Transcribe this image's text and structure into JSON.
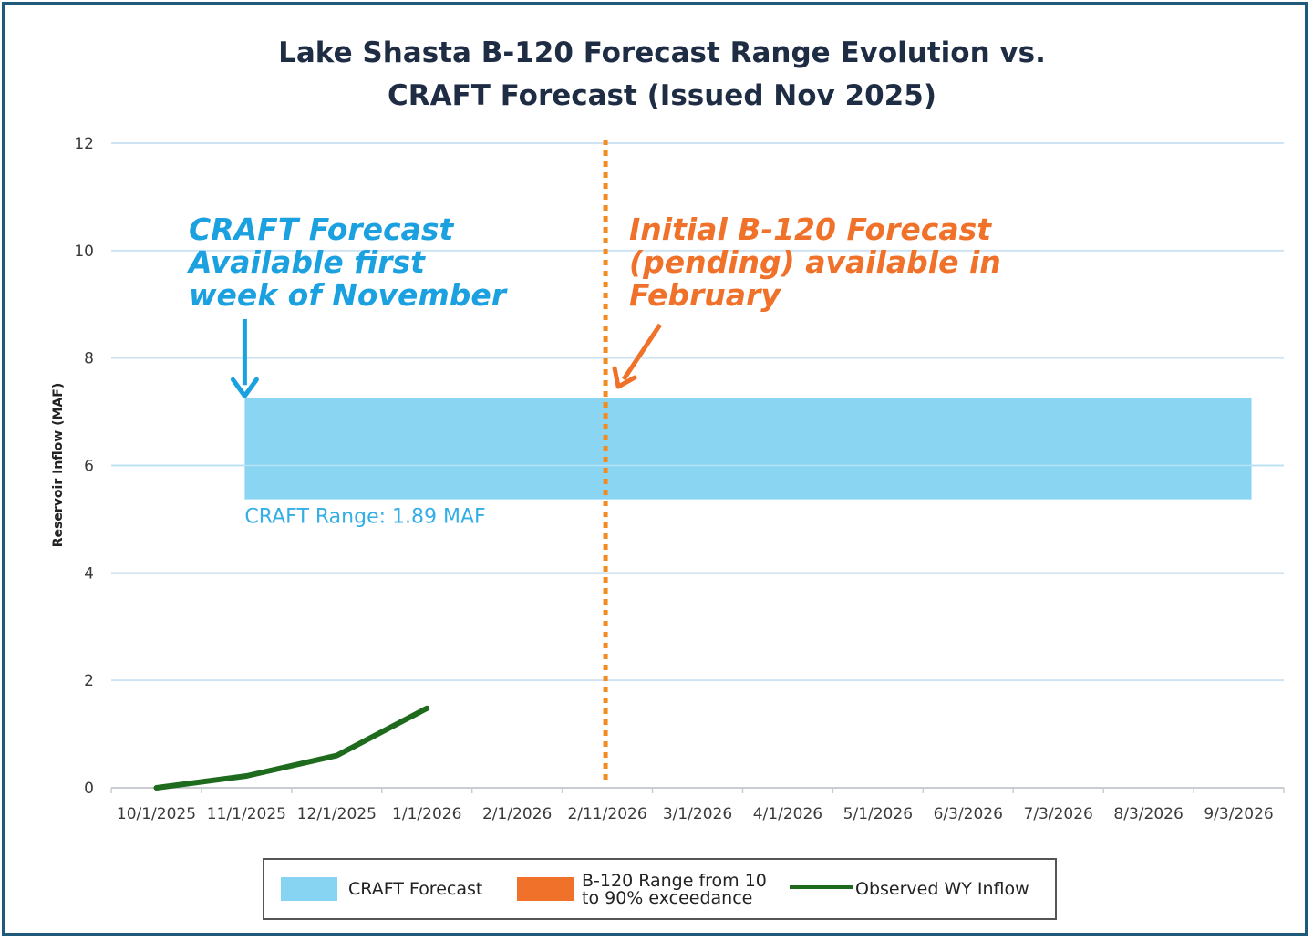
{
  "chart_data": {
    "type": "line",
    "title_lines": [
      "Lake Shasta B-120 Forecast Range Evolution vs.",
      "CRAFT Forecast (Issued Nov 2025)"
    ],
    "xlabel": "",
    "ylabel": "Reservoir Inflow (MAF)",
    "ylim": [
      0,
      12
    ],
    "yticks": [
      0,
      2,
      4,
      6,
      8,
      10,
      12
    ],
    "categories": [
      "10/1/2025",
      "11/1/2025",
      "12/1/2025",
      "1/1/2026",
      "2/1/2026",
      "2/11/2026",
      "3/1/2026",
      "4/1/2026",
      "5/1/2026",
      "6/3/2026",
      "7/3/2026",
      "8/3/2026",
      "9/3/2026"
    ],
    "grid": true,
    "series": [
      {
        "name": "Observed WY Inflow",
        "color": "#1e6b1e",
        "points": [
          {
            "x": "10/1/2025",
            "y": 0.0
          },
          {
            "x": "11/1/2025",
            "y": 0.22
          },
          {
            "x": "12/1/2025",
            "y": 0.6
          },
          {
            "x": "1/1/2026",
            "y": 1.48
          }
        ]
      }
    ],
    "bands": [
      {
        "name": "CRAFT Forecast",
        "color": "#87d4f2",
        "x_start": "11/1/2025",
        "x_end": "9/3/2026",
        "y_low": 5.37,
        "y_high": 7.26,
        "label": "CRAFT Range: 1.89 MAF"
      }
    ],
    "vlines": [
      {
        "x": "2/11/2026",
        "color": "#f58a1f",
        "style": "dotted"
      }
    ],
    "annotations": [
      {
        "lines": [
          "CRAFT Forecast",
          "Available first",
          "week of November"
        ],
        "color": "#1ba0e0",
        "arrow_to": {
          "x": "11/1/2025",
          "y": 7.26
        }
      },
      {
        "lines": [
          "Initial B-120 Forecast",
          "(pending) available in",
          "February"
        ],
        "color": "#f0722a",
        "arrow_to": {
          "x": "2/11/2026",
          "y": 7.4
        }
      }
    ],
    "legend": [
      {
        "label_lines": [
          "CRAFT Forecast"
        ],
        "kind": "box",
        "color": "#87d4f2"
      },
      {
        "label_lines": [
          "B-120 Range from 10",
          "to 90% exceedance"
        ],
        "kind": "box",
        "color": "#f0722a"
      },
      {
        "label_lines": [
          "Observed WY Inflow"
        ],
        "kind": "line",
        "color": "#1e6b1e"
      }
    ],
    "legend_position": "bottom-center"
  }
}
